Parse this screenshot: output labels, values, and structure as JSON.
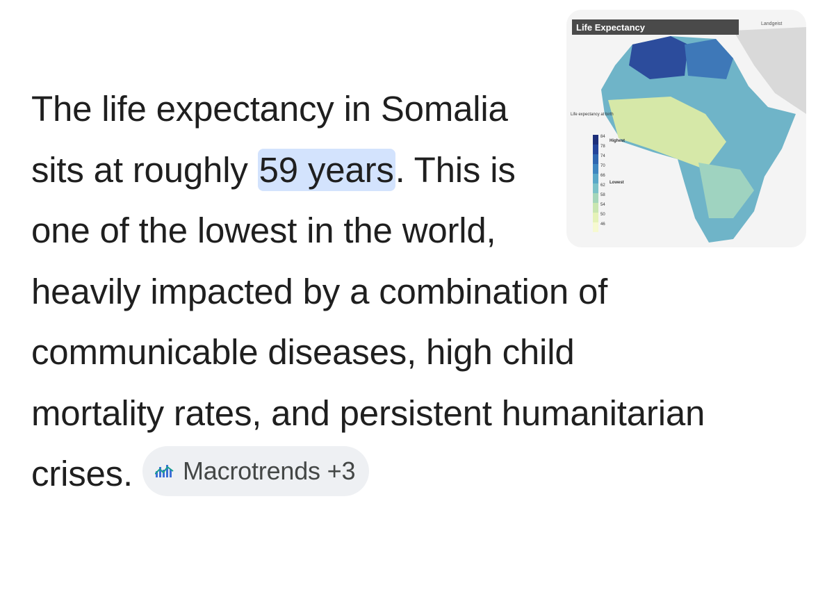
{
  "answer": {
    "text_before": "The life expectancy in Somalia sits at roughly",
    "highlight": "59 years",
    "text_after": ". This is one of the lowest in the world, heavily impacted by a combination of communicable diseases, high child mortality rates, and persistent humanitarian crises."
  },
  "source_chip": {
    "label": "Macrotrends +3"
  },
  "thumbnail": {
    "title": "Life Expectancy",
    "credit": "Landgeist",
    "legend_title": "Life expectancy at birth",
    "legend_scale": [
      "84",
      "78",
      "74",
      "70",
      "66",
      "62",
      "58",
      "54",
      "50",
      "46"
    ],
    "highest": "Highest",
    "lowest": "Lowest"
  }
}
